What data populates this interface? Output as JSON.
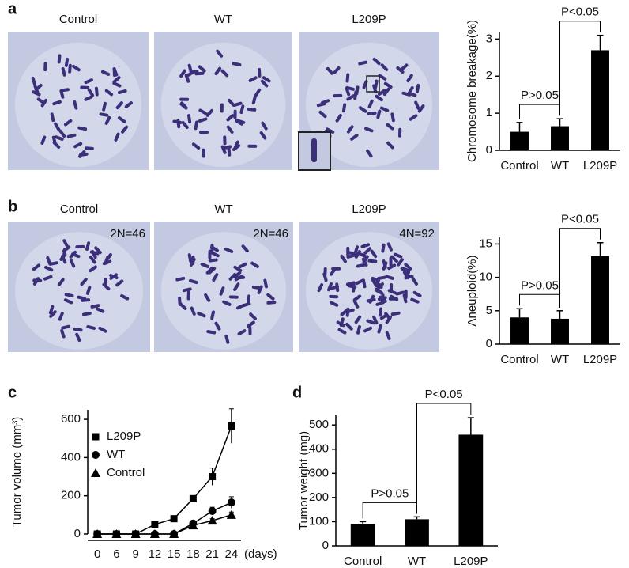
{
  "panels": [
    {
      "letter": "a",
      "images": [
        {
          "label": "Control"
        },
        {
          "label": "WT"
        },
        {
          "label": "L209P"
        }
      ]
    },
    {
      "letter": "b",
      "images": [
        {
          "label": "Control",
          "note": "2N=46"
        },
        {
          "label": "WT",
          "note": "2N=46"
        },
        {
          "label": "L209P",
          "note": "4N=92"
        }
      ]
    },
    {
      "letter": "c"
    },
    {
      "letter": "d"
    }
  ],
  "chart_data": [
    {
      "type": "bar",
      "ylabel": "Chromosome breakage(%)",
      "categories": [
        "Control",
        "WT",
        "L209P"
      ],
      "values": [
        0.5,
        0.65,
        2.7
      ],
      "errors": [
        0.25,
        0.2,
        0.4
      ],
      "color": "#000000",
      "ylim": [
        0,
        3.2
      ],
      "yticks": [
        0,
        1,
        2,
        3
      ],
      "annotations": [
        "P>0.05",
        "P<0.05"
      ]
    },
    {
      "type": "bar",
      "ylabel": "Aneuploid(%)",
      "categories": [
        "Control",
        "WT",
        "L209P"
      ],
      "values": [
        4,
        3.8,
        13.2
      ],
      "errors": [
        1.3,
        1.2,
        2
      ],
      "color": "#000000",
      "ylim": [
        0,
        16
      ],
      "yticks": [
        0,
        5,
        10,
        15
      ],
      "annotations": [
        "P>0.05",
        "P<0.05"
      ]
    },
    {
      "type": "line",
      "ylabel": "Tumor volume (mm³)",
      "xlabel": "(days)",
      "categories": [
        "0",
        "6",
        "9",
        "12",
        "15",
        "18",
        "21",
        "24"
      ],
      "series": [
        {
          "name": "L209P",
          "marker": "square",
          "color": "#000000",
          "values": [
            0,
            0,
            0,
            50,
            80,
            185,
            300,
            565
          ],
          "errors": [
            0,
            0,
            0,
            6,
            8,
            15,
            45,
            90
          ]
        },
        {
          "name": "WT",
          "marker": "circle",
          "color": "#000000",
          "values": [
            0,
            0,
            0,
            0,
            0,
            55,
            120,
            165
          ],
          "errors": [
            0,
            0,
            0,
            0,
            0,
            10,
            20,
            30
          ]
        },
        {
          "name": "Control",
          "marker": "triangle",
          "color": "#000000",
          "values": [
            0,
            0,
            0,
            0,
            0,
            45,
            70,
            100
          ],
          "errors": [
            0,
            0,
            0,
            0,
            0,
            8,
            10,
            15
          ]
        }
      ],
      "ylim": [
        0,
        650
      ],
      "yticks": [
        0,
        200,
        400,
        600
      ]
    },
    {
      "type": "bar",
      "ylabel": "Tumor weight (mg)",
      "categories": [
        "Control",
        "WT",
        "L209P"
      ],
      "values": [
        90,
        110,
        460
      ],
      "errors": [
        10,
        10,
        70
      ],
      "color": "#000000",
      "ylim": [
        0,
        540
      ],
      "yticks": [
        0,
        100,
        200,
        300,
        400,
        500
      ],
      "annotations": [
        "P>0.05",
        "P<0.05"
      ]
    }
  ]
}
